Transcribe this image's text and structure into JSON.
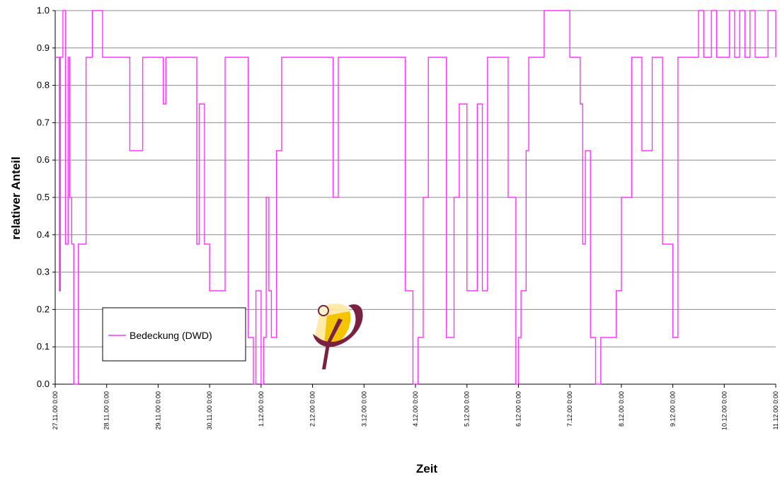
{
  "chart_data": {
    "type": "line",
    "title": "",
    "xlabel": "Zeit",
    "ylabel": "relativer Anteil",
    "ylim": [
      0,
      1
    ],
    "y_ticks": [
      "0.0",
      "0.1",
      "0.2",
      "0.3",
      "0.4",
      "0.5",
      "0.6",
      "0.7",
      "0.8",
      "0.9",
      "1.0"
    ],
    "x_ticks": [
      "27.11.00 0:00",
      "28.11.00 0:00",
      "29.11.00 0:00",
      "30.11.00 0:00",
      "1.12.00 0:00",
      "2.12.00 0:00",
      "3.12.00 0:00",
      "4.12.00 0:00",
      "5.12.00 0:00",
      "6.12.00 0:00",
      "7.12.00 0:00",
      "8.12.00 0:00",
      "9.12.00 0:00",
      "10.12.00 0:00",
      "11.12.00 0:00"
    ],
    "x_unit": "days from 27.11.00 0:00",
    "grid": "horizontal",
    "legend": "lower-left",
    "series": [
      {
        "name": "Bedeckung (DWD)",
        "color": "#ff33ff",
        "x": [
          0.0,
          0.08,
          0.1,
          0.15,
          0.2,
          0.25,
          0.28,
          0.32,
          0.36,
          0.45,
          0.6,
          0.65,
          0.72,
          0.78,
          0.8,
          0.85,
          0.88,
          0.9,
          0.92,
          0.95,
          1.0,
          1.05,
          1.2,
          1.45,
          1.7,
          1.95,
          2.0,
          2.1,
          2.15,
          2.2,
          2.3,
          2.35,
          2.4,
          2.5,
          2.75,
          2.8,
          2.9,
          3.0,
          3.3,
          3.4,
          3.45,
          3.5,
          3.55,
          3.6,
          3.75,
          3.85,
          3.9,
          4.0,
          4.05,
          4.1,
          4.15,
          4.2,
          4.3,
          4.4,
          4.6,
          5.0,
          5.2,
          5.4,
          5.5,
          5.6,
          5.65,
          5.7,
          5.8,
          6.0,
          6.5,
          6.8,
          6.95,
          7.05,
          7.15,
          7.25,
          7.3,
          7.5,
          7.6,
          7.75,
          7.85,
          8.0,
          8.2,
          8.3,
          8.4,
          8.5,
          8.6,
          8.8,
          8.95,
          9.0,
          9.05,
          9.15,
          9.2,
          9.3,
          9.5,
          9.8,
          10.0,
          10.1,
          10.2,
          10.25,
          10.3,
          10.4,
          10.5,
          10.6,
          10.7,
          10.9,
          11.0,
          11.2,
          11.4,
          11.6,
          11.8,
          12.0,
          12.1,
          12.3,
          12.5,
          12.6,
          12.75,
          12.85,
          12.9,
          13.0,
          13.1,
          13.2,
          13.3,
          13.4,
          13.5,
          13.6,
          13.75,
          13.85,
          14.0
        ],
        "values": [
          0.875,
          0.25,
          0.875,
          1.0,
          0.375,
          0.875,
          0.5,
          0.375,
          0.0,
          0.375,
          0.875,
          0.875,
          1.0,
          1.0,
          1.0,
          1.0,
          1.0,
          1.0,
          0.875,
          0.875,
          0.875,
          0.875,
          0.875,
          0.625,
          0.875,
          0.875,
          0.875,
          0.75,
          0.875,
          0.875,
          0.875,
          0.875,
          0.875,
          0.875,
          0.375,
          0.75,
          0.375,
          0.25,
          0.875,
          0.875,
          0.875,
          0.875,
          0.875,
          0.875,
          0.125,
          0.0,
          0.25,
          0.0,
          0.125,
          0.5,
          0.25,
          0.125,
          0.625,
          0.875,
          0.875,
          0.875,
          0.875,
          0.5,
          0.875,
          0.875,
          0.875,
          0.875,
          0.875,
          0.875,
          0.875,
          0.25,
          0.0,
          0.125,
          0.5,
          0.875,
          0.875,
          0.875,
          0.125,
          0.5,
          0.75,
          0.25,
          0.75,
          0.25,
          0.875,
          0.875,
          0.875,
          0.5,
          0.0,
          0.125,
          0.25,
          0.625,
          0.875,
          0.875,
          1.0,
          1.0,
          0.875,
          0.875,
          0.75,
          0.375,
          0.625,
          0.125,
          0.0,
          0.125,
          0.125,
          0.25,
          0.5,
          0.875,
          0.625,
          0.875,
          0.375,
          0.125,
          0.875,
          0.875,
          1.0,
          0.875,
          1.0,
          0.875,
          0.875,
          0.875,
          1.0,
          0.875,
          1.0,
          0.875,
          1.0,
          0.875,
          0.875,
          1.0,
          0.875
        ]
      }
    ]
  },
  "logo": {
    "name": "phi-logo"
  }
}
